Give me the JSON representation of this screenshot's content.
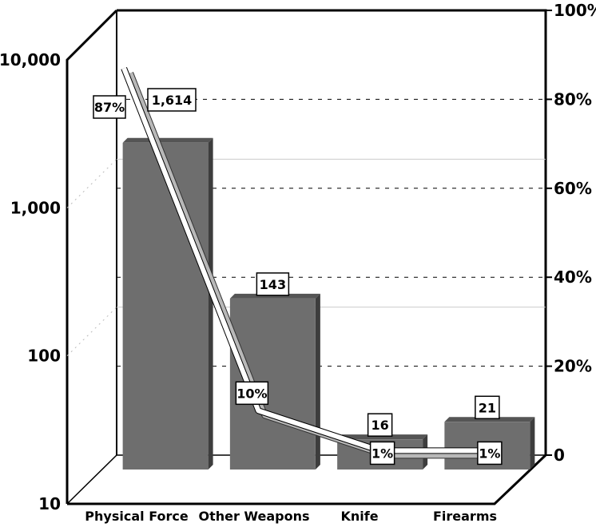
{
  "chart_data": {
    "type": "bar",
    "categories": [
      "Physical Force",
      "Other Weapons",
      "Knife",
      "Firearms"
    ],
    "y_scale": "log",
    "ylim": [
      10,
      10000
    ],
    "y_ticks": [
      "10",
      "100",
      "1,000",
      "10,000"
    ],
    "y2lim": [
      0,
      100
    ],
    "y2_ticks": [
      "0",
      "20%",
      "40%",
      "60%",
      "80%",
      "100%"
    ],
    "grid": "dashed horizontal lines at secondary-axis ticks",
    "series": [
      {
        "kind": "bar",
        "values": [
          1614,
          143,
          16,
          21
        ],
        "labels": [
          "1,614",
          "143",
          "16",
          "21"
        ]
      },
      {
        "kind": "line",
        "axis": "secondary",
        "values": [
          87,
          10,
          1,
          1
        ],
        "labels": [
          "87%",
          "10%",
          "1%",
          "1%"
        ]
      }
    ],
    "colors": {
      "bar_front": "#6e6e6e",
      "bar_side": "#3d3d3d",
      "bar_top": "#555555",
      "ribbon": "#ffffff",
      "ribbon_edge": "#b8b8b8"
    }
  }
}
